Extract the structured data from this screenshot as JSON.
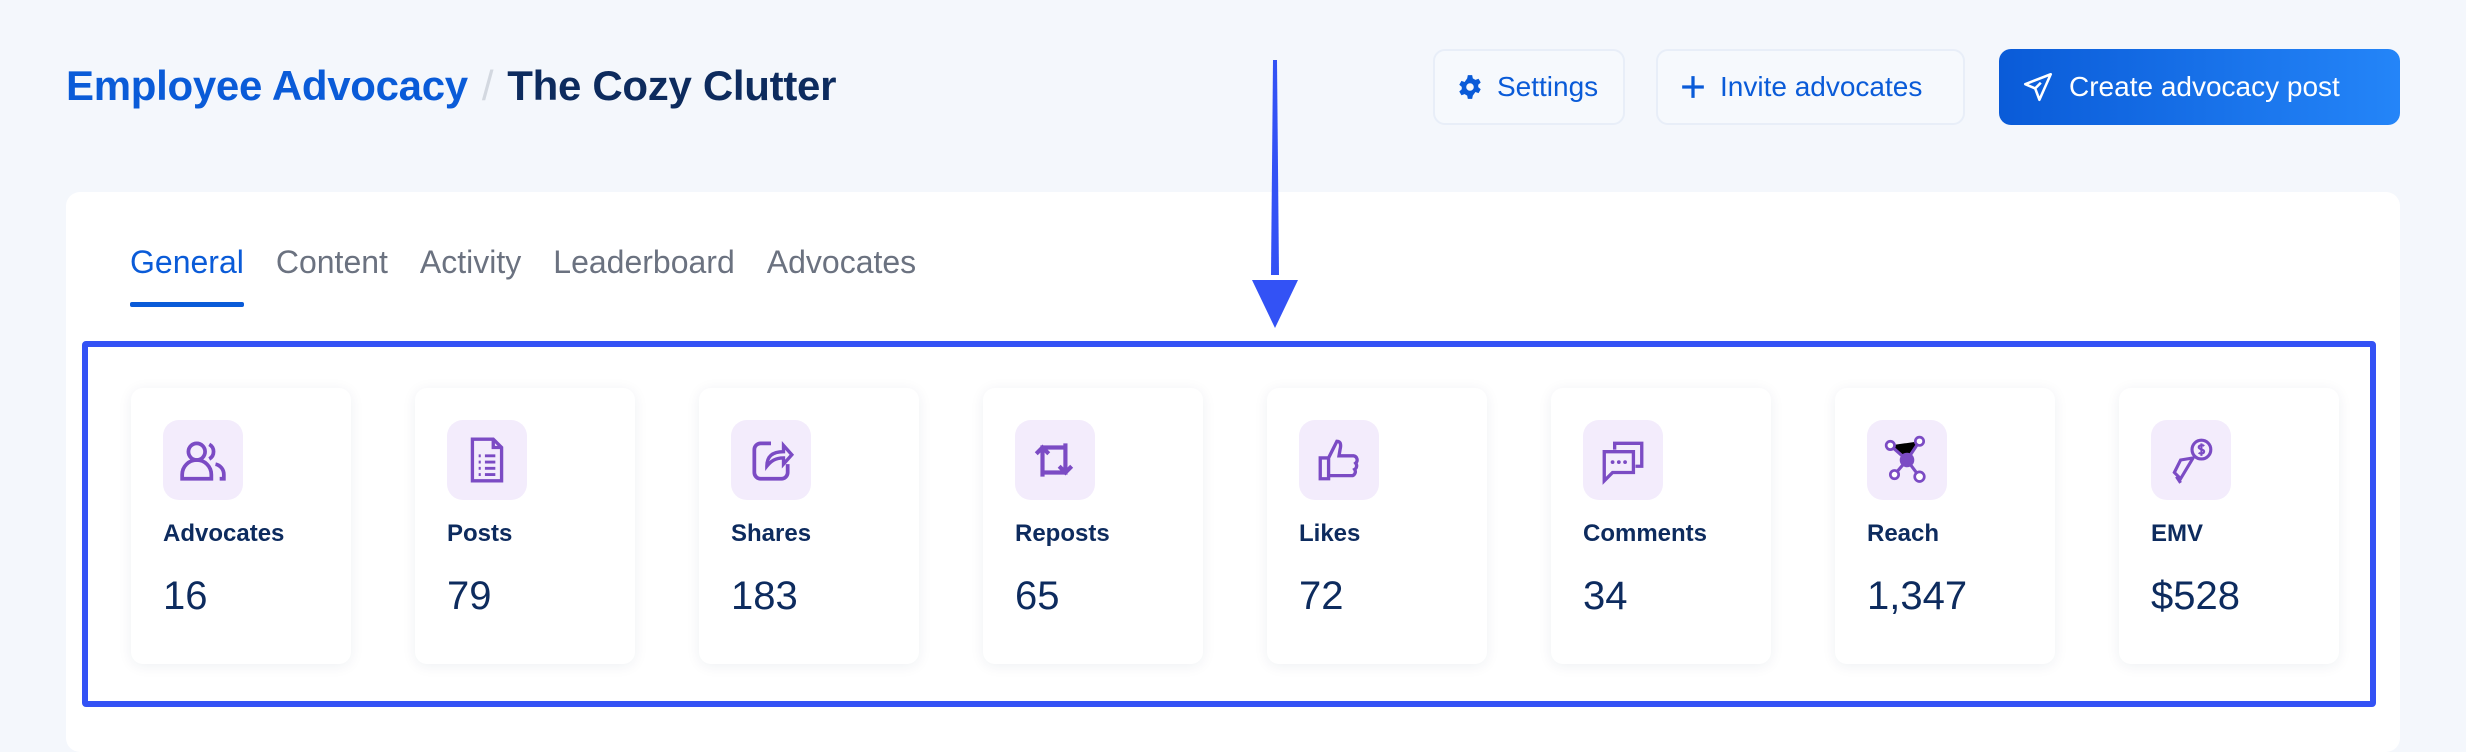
{
  "breadcrumb": {
    "parent": "Employee Advocacy",
    "separator": "/",
    "current": "The Cozy Clutter"
  },
  "actions": {
    "settings": "Settings",
    "invite": "Invite advocates",
    "create": "Create advocacy post"
  },
  "tabs": [
    {
      "label": "General",
      "active": true
    },
    {
      "label": "Content"
    },
    {
      "label": "Activity"
    },
    {
      "label": "Leaderboard"
    },
    {
      "label": "Advocates"
    }
  ],
  "stats": [
    {
      "label": "Advocates",
      "value": "16",
      "icon": "users-icon"
    },
    {
      "label": "Posts",
      "value": "79",
      "icon": "document-icon"
    },
    {
      "label": "Shares",
      "value": "183",
      "icon": "share-icon"
    },
    {
      "label": "Reposts",
      "value": "65",
      "icon": "repost-icon"
    },
    {
      "label": "Likes",
      "value": "72",
      "icon": "thumbs-up-icon"
    },
    {
      "label": "Comments",
      "value": "34",
      "icon": "comments-icon"
    },
    {
      "label": "Reach",
      "value": "1,347",
      "icon": "network-icon"
    },
    {
      "label": "EMV",
      "value": "$528",
      "icon": "megaphone-dollar-icon"
    }
  ],
  "colors": {
    "brand": "#0a5bd8",
    "text": "#0d2b5e",
    "icon": "#7b4bc4",
    "highlight": "#3352f5"
  }
}
